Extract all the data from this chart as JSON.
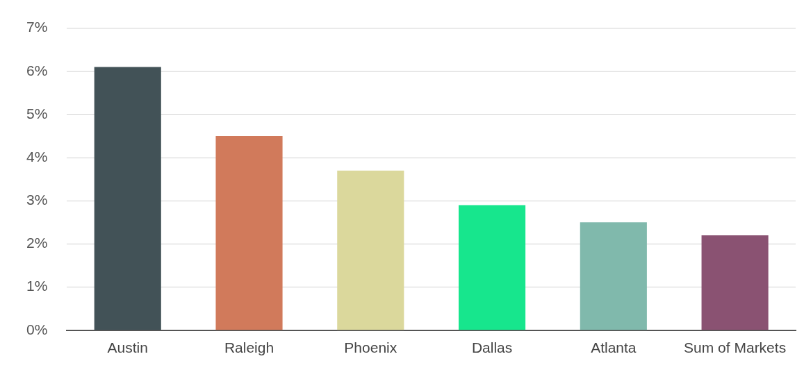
{
  "chart_data": {
    "type": "bar",
    "categories": [
      "Austin",
      "Raleigh",
      "Phoenix",
      "Dallas",
      "Atlanta",
      "Sum of Markets"
    ],
    "values": [
      6.1,
      4.5,
      3.7,
      2.9,
      2.5,
      2.2
    ],
    "colors": [
      "#425257",
      "#d17a5b",
      "#dbd89c",
      "#17e68d",
      "#80b9ac",
      "#8a5272"
    ],
    "ylim": [
      0,
      7
    ],
    "yticks": [
      {
        "value": 0,
        "label": "0%"
      },
      {
        "value": 1,
        "label": "1%"
      },
      {
        "value": 2,
        "label": "2%"
      },
      {
        "value": 3,
        "label": "3%"
      },
      {
        "value": 4,
        "label": "4%"
      },
      {
        "value": 5,
        "label": "5%"
      },
      {
        "value": 6,
        "label": "6%"
      },
      {
        "value": 7,
        "label": "7%"
      }
    ],
    "grid": "y",
    "legend": false
  }
}
